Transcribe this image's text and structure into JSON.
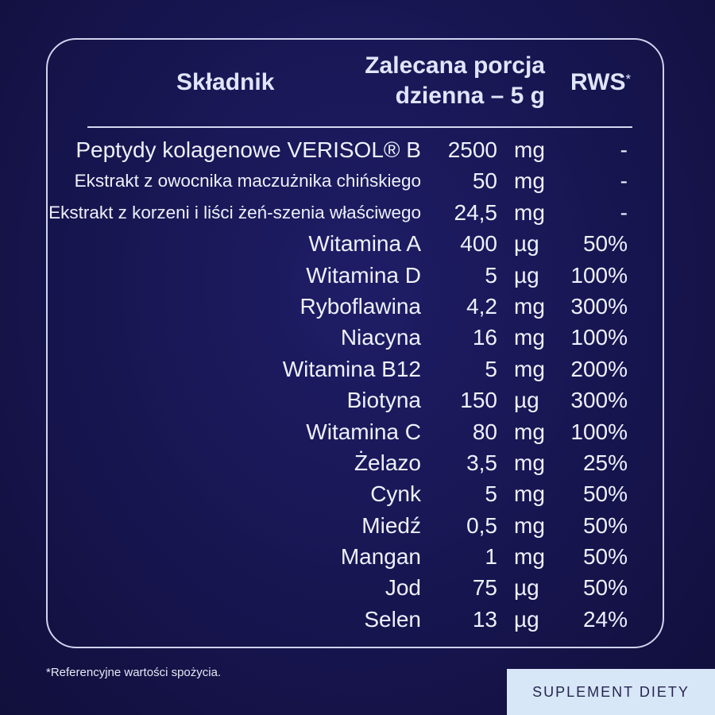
{
  "header": {
    "ingredient": "Składnik",
    "portion_line1": "Zalecana porcja",
    "portion_line2": "dzienna – 5 g",
    "rws": "RWS",
    "rws_mark": "*"
  },
  "rows": [
    {
      "name": "Peptydy kolagenowe VERISOL® B",
      "amount": "2500",
      "unit": "mg",
      "rws": "-"
    },
    {
      "name": "Ekstrakt z owocnika maczużnika chińskiego",
      "amount": "50",
      "unit": "mg",
      "rws": "-"
    },
    {
      "name": "Ekstrakt z korzeni i liści żeń-szenia właściwego",
      "amount": "24,5",
      "unit": "mg",
      "rws": "-"
    },
    {
      "name": "Witamina A",
      "amount": "400",
      "unit": "µg",
      "rws": "50%"
    },
    {
      "name": "Witamina D",
      "amount": "5",
      "unit": "µg",
      "rws": "100%"
    },
    {
      "name": "Ryboflawina",
      "amount": "4,2",
      "unit": "mg",
      "rws": "300%"
    },
    {
      "name": "Niacyna",
      "amount": "16",
      "unit": "mg",
      "rws": "100%"
    },
    {
      "name": "Witamina B12",
      "amount": "5",
      "unit": "mg",
      "rws": "200%"
    },
    {
      "name": "Biotyna",
      "amount": "150",
      "unit": "µg",
      "rws": "300%"
    },
    {
      "name": "Witamina C",
      "amount": "80",
      "unit": "mg",
      "rws": "100%"
    },
    {
      "name": "Żelazo",
      "amount": "3,5",
      "unit": "mg",
      "rws": "25%"
    },
    {
      "name": "Cynk",
      "amount": "5",
      "unit": "mg",
      "rws": "50%"
    },
    {
      "name": "Miedź",
      "amount": "0,5",
      "unit": "mg",
      "rws": "50%"
    },
    {
      "name": "Mangan",
      "amount": "1",
      "unit": "mg",
      "rws": "50%"
    },
    {
      "name": "Jod",
      "amount": "75",
      "unit": "µg",
      "rws": "50%"
    },
    {
      "name": "Selen",
      "amount": "13",
      "unit": "µg",
      "rws": "24%"
    }
  ],
  "footnote": "*Referencyjne wartości spożycia.",
  "badge": "SUPLEMENT DIETY",
  "colors": {
    "background": "#17154f",
    "text": "#eef0fb",
    "badge_bg": "#d7e7f7",
    "badge_text": "#26254f"
  }
}
